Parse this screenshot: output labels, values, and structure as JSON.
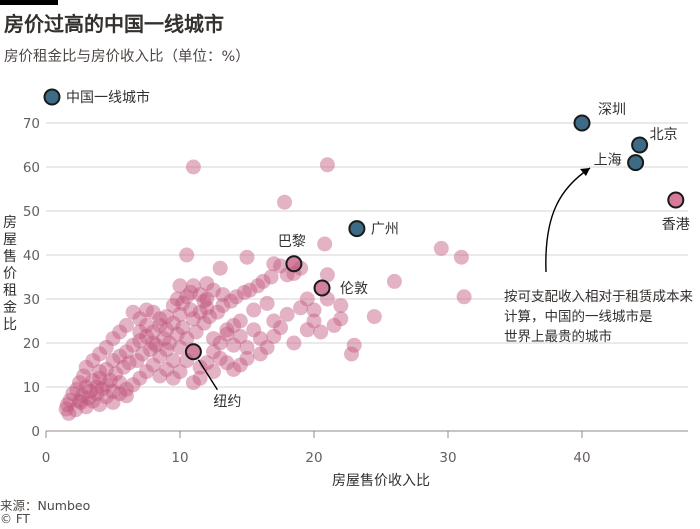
{
  "header": {
    "title": "房价过高的中国一线城市",
    "subtitle": "房价租金比与房价收入比（单位：%）"
  },
  "footer": {
    "source": "来源：Numbeo",
    "credit": "© FT"
  },
  "colors": {
    "highlight_fill": "#3d6b85",
    "highlight_stroke": "#1a1a1a",
    "cloud_fill": "#c2577f",
    "hk_fill": "#d97a99",
    "grid": "#d9d4d0",
    "axis_text": "#66605c",
    "text": "#33302e"
  },
  "chart_data": {
    "type": "scatter",
    "title": "房价过高的中国一线城市",
    "subtitle": "房价租金比与房价收入比（单位：%）",
    "xlabel": "房屋售价收入比",
    "ylabel": "房屋售价租金比",
    "xlim": [
      0,
      47
    ],
    "ylim": [
      0,
      72
    ],
    "xticks": [
      0,
      10,
      20,
      30,
      40
    ],
    "yticks": [
      0,
      10,
      20,
      30,
      40,
      50,
      60,
      70
    ],
    "legend": {
      "label": "中国一线城市",
      "placement": "top-left"
    },
    "annotation": "按可支配收入相对于租赁成本来计算，中国的一线城市是世界上最贵的城市",
    "china_tier1": [
      {
        "name": "深圳",
        "x": 40.0,
        "y": 70.0
      },
      {
        "name": "北京",
        "x": 44.3,
        "y": 65.0
      },
      {
        "name": "上海",
        "x": 44.0,
        "y": 61.0
      },
      {
        "name": "广州",
        "x": 23.2,
        "y": 46.0
      }
    ],
    "labeled_cities": [
      {
        "name": "香港",
        "x": 47.0,
        "y": 52.5
      },
      {
        "name": "巴黎",
        "x": 18.5,
        "y": 38.0
      },
      {
        "name": "伦敦",
        "x": 20.6,
        "y": 32.5
      },
      {
        "name": "纽约",
        "x": 11.0,
        "y": 18.0
      }
    ],
    "other_cities": [
      [
        11.0,
        60.0
      ],
      [
        21.0,
        60.5
      ],
      [
        17.8,
        52.0
      ],
      [
        10.5,
        40.0
      ],
      [
        15.0,
        39.5
      ],
      [
        17.0,
        38.0
      ],
      [
        17.5,
        37.5
      ],
      [
        13.0,
        37.0
      ],
      [
        19.0,
        37.0
      ],
      [
        20.8,
        42.5
      ],
      [
        21.0,
        35.5
      ],
      [
        18.0,
        35.5
      ],
      [
        18.5,
        35.8
      ],
      [
        26.0,
        34.0
      ],
      [
        29.5,
        41.5
      ],
      [
        31.0,
        39.5
      ],
      [
        31.2,
        30.5
      ],
      [
        21.0,
        30.0
      ],
      [
        24.5,
        26.0
      ],
      [
        22.0,
        25.5
      ],
      [
        20.5,
        22.5
      ],
      [
        23.0,
        19.5
      ],
      [
        22.8,
        17.5
      ],
      [
        20.0,
        25.0
      ],
      [
        19.5,
        23.0
      ],
      [
        18.5,
        20.0
      ],
      [
        17.0,
        25.0
      ],
      [
        16.5,
        29.0
      ],
      [
        15.5,
        27.5
      ],
      [
        14.5,
        25.0
      ],
      [
        13.5,
        23.0
      ],
      [
        12.5,
        21.0
      ],
      [
        12.0,
        30.0
      ],
      [
        11.5,
        31.0
      ],
      [
        10.5,
        30.5
      ],
      [
        10.0,
        33.0
      ],
      [
        10.8,
        27.5
      ],
      [
        9.5,
        28.5
      ],
      [
        9.0,
        26.0
      ],
      [
        8.5,
        24.0
      ],
      [
        8.0,
        22.5
      ],
      [
        7.5,
        27.5
      ],
      [
        7.0,
        25.5
      ],
      [
        6.5,
        27.0
      ],
      [
        6.0,
        24.0
      ],
      [
        5.5,
        22.5
      ],
      [
        5.0,
        21.0
      ],
      [
        4.5,
        19.0
      ],
      [
        4.0,
        17.5
      ],
      [
        3.5,
        16.0
      ],
      [
        3.0,
        14.5
      ],
      [
        2.8,
        12.5
      ],
      [
        2.5,
        11.0
      ],
      [
        2.3,
        9.5
      ],
      [
        2.0,
        8.5
      ],
      [
        1.8,
        7.0
      ],
      [
        1.6,
        6.0
      ],
      [
        1.5,
        5.0
      ],
      [
        1.7,
        4.0
      ],
      [
        2.2,
        4.8
      ],
      [
        2.6,
        6.5
      ],
      [
        3.2,
        7.5
      ],
      [
        3.8,
        8.5
      ],
      [
        4.2,
        9.5
      ],
      [
        4.8,
        11.5
      ],
      [
        5.2,
        13.0
      ],
      [
        5.8,
        14.5
      ],
      [
        6.2,
        15.5
      ],
      [
        6.8,
        16.0
      ],
      [
        7.2,
        17.5
      ],
      [
        7.8,
        18.5
      ],
      [
        8.2,
        19.5
      ],
      [
        8.8,
        21.0
      ],
      [
        9.2,
        20.0
      ],
      [
        9.8,
        22.0
      ],
      [
        10.2,
        23.5
      ],
      [
        11.2,
        22.5
      ],
      [
        11.8,
        24.5
      ],
      [
        12.2,
        26.0
      ],
      [
        12.8,
        27.0
      ],
      [
        13.2,
        28.5
      ],
      [
        13.8,
        29.5
      ],
      [
        14.2,
        30.5
      ],
      [
        14.8,
        31.5
      ],
      [
        15.2,
        32.0
      ],
      [
        15.8,
        33.0
      ],
      [
        16.2,
        34.0
      ],
      [
        16.8,
        35.0
      ],
      [
        12.5,
        18.0
      ],
      [
        13.0,
        16.5
      ],
      [
        13.5,
        15.5
      ],
      [
        14.0,
        14.0
      ],
      [
        14.5,
        15.0
      ],
      [
        15.0,
        16.5
      ],
      [
        16.0,
        17.5
      ],
      [
        16.5,
        19.0
      ],
      [
        17.0,
        21.5
      ],
      [
        17.5,
        23.5
      ],
      [
        18.0,
        26.5
      ],
      [
        19.0,
        28.0
      ],
      [
        19.5,
        30.0
      ],
      [
        20.0,
        27.5
      ],
      [
        21.5,
        24.0
      ],
      [
        22.0,
        28.5
      ],
      [
        9.0,
        14.0
      ],
      [
        8.5,
        12.5
      ],
      [
        8.0,
        15.0
      ],
      [
        7.5,
        13.5
      ],
      [
        7.0,
        12.0
      ],
      [
        6.5,
        10.5
      ],
      [
        6.0,
        9.5
      ],
      [
        5.5,
        11.0
      ],
      [
        5.0,
        9.0
      ],
      [
        4.5,
        10.5
      ],
      [
        4.0,
        12.0
      ],
      [
        3.5,
        11.5
      ],
      [
        3.0,
        10.0
      ],
      [
        2.7,
        8.0
      ],
      [
        3.3,
        9.0
      ],
      [
        3.8,
        10.0
      ],
      [
        6.5,
        19.5
      ],
      [
        6.0,
        18.0
      ],
      [
        5.5,
        17.0
      ],
      [
        5.0,
        16.0
      ],
      [
        4.5,
        14.0
      ],
      [
        4.0,
        13.5
      ],
      [
        7.0,
        20.5
      ],
      [
        7.5,
        21.5
      ],
      [
        8.0,
        20.0
      ],
      [
        8.5,
        17.0
      ],
      [
        9.0,
        18.5
      ],
      [
        9.5,
        16.0
      ],
      [
        10.0,
        19.0
      ],
      [
        10.5,
        21.0
      ],
      [
        11.0,
        25.5
      ],
      [
        11.5,
        27.0
      ],
      [
        12.0,
        28.0
      ],
      [
        10.0,
        26.5
      ],
      [
        9.5,
        24.5
      ],
      [
        9.0,
        23.0
      ],
      [
        8.5,
        25.5
      ],
      [
        8.0,
        27.0
      ],
      [
        7.5,
        24.0
      ],
      [
        7.0,
        22.5
      ],
      [
        10.5,
        16.0
      ],
      [
        11.5,
        14.5
      ],
      [
        12.0,
        15.5
      ],
      [
        12.5,
        13.5
      ],
      [
        11.5,
        12.0
      ],
      [
        10.0,
        13.5
      ],
      [
        9.5,
        12.0
      ],
      [
        11.0,
        11.0
      ],
      [
        13.0,
        20.0
      ],
      [
        13.5,
        22.0
      ],
      [
        14.0,
        19.5
      ],
      [
        14.5,
        21.5
      ],
      [
        15.5,
        23.0
      ],
      [
        16.0,
        21.0
      ],
      [
        15.0,
        19.0
      ],
      [
        14.0,
        24.0
      ],
      [
        3.0,
        5.5
      ],
      [
        2.5,
        6.8
      ],
      [
        3.5,
        6.8
      ],
      [
        4.5,
        7.8
      ],
      [
        5.5,
        8.5
      ],
      [
        5.0,
        6.5
      ],
      [
        4.0,
        6.0
      ],
      [
        6.0,
        8.0
      ],
      [
        10.2,
        29.0
      ],
      [
        11.0,
        33.0
      ],
      [
        12.0,
        33.5
      ],
      [
        10.8,
        31.5
      ],
      [
        9.8,
        30.0
      ],
      [
        12.5,
        32.0
      ],
      [
        13.2,
        31.0
      ],
      [
        11.8,
        29.5
      ]
    ]
  }
}
